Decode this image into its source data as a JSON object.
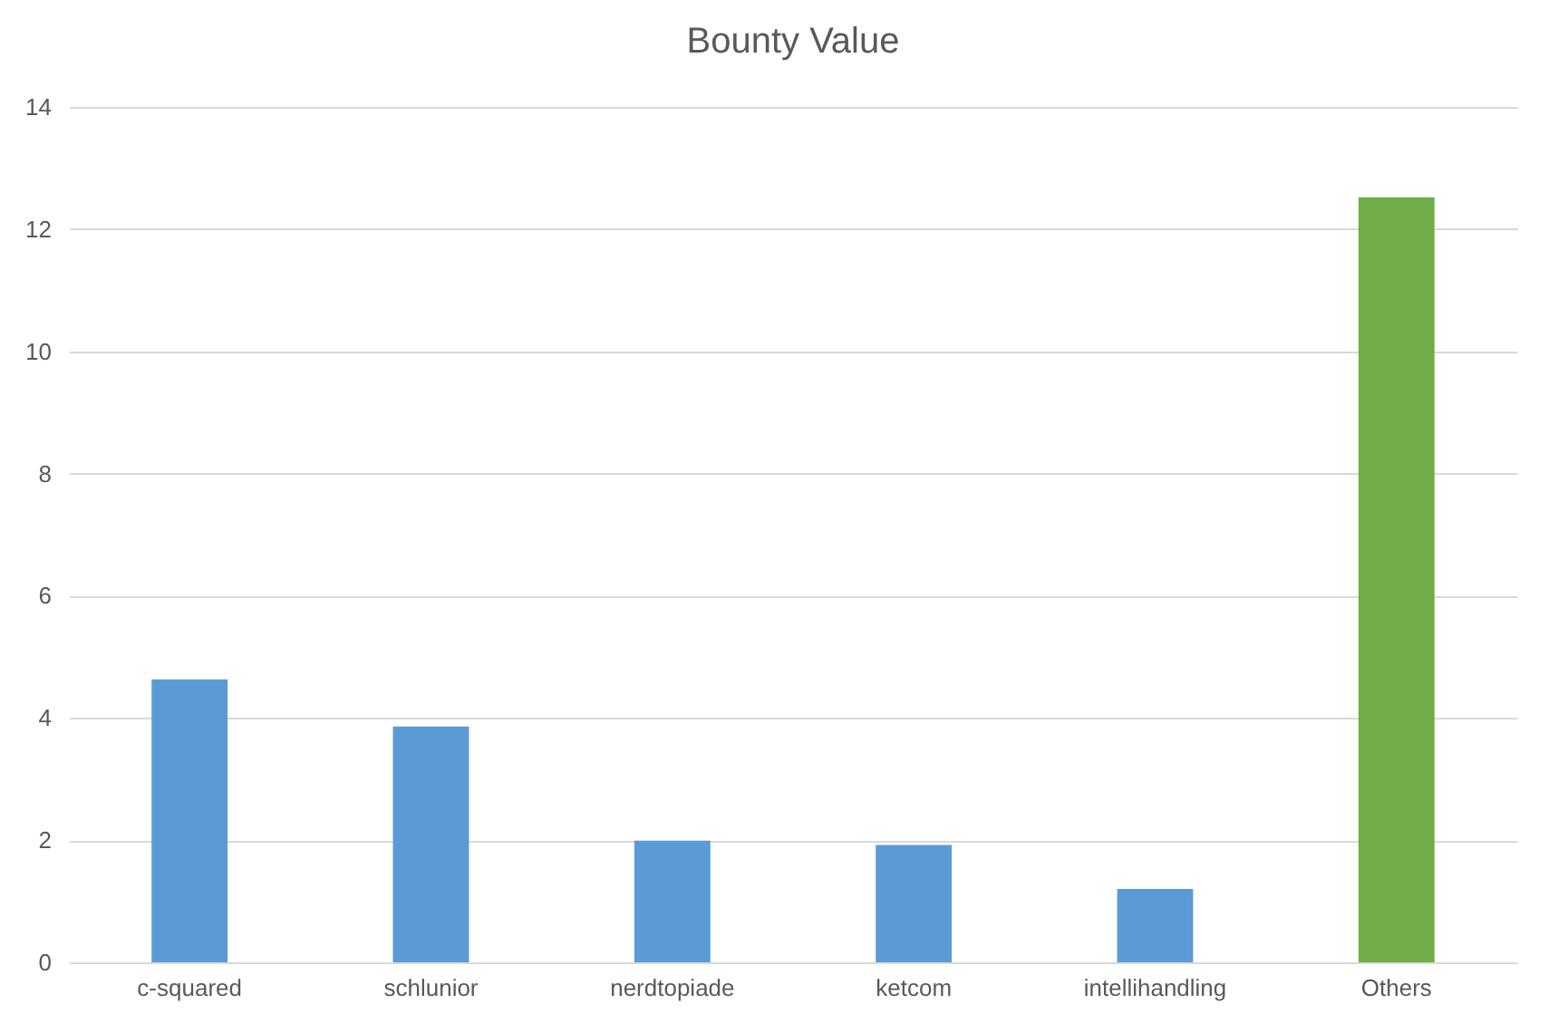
{
  "chart_data": {
    "type": "bar",
    "title": "Bounty Value",
    "categories": [
      "c-squared",
      "schlunior",
      "nerdtopiade",
      "ketcom",
      "intellihandling",
      "Others"
    ],
    "values": [
      4.63,
      3.86,
      1.99,
      1.92,
      1.2,
      12.52
    ],
    "colors": [
      "#5b9bd5",
      "#5b9bd5",
      "#5b9bd5",
      "#5b9bd5",
      "#5b9bd5",
      "#70ad47"
    ],
    "ylim": [
      0,
      14
    ],
    "yticks": [
      0,
      2,
      4,
      6,
      8,
      10,
      12,
      14
    ],
    "grid": "y"
  }
}
